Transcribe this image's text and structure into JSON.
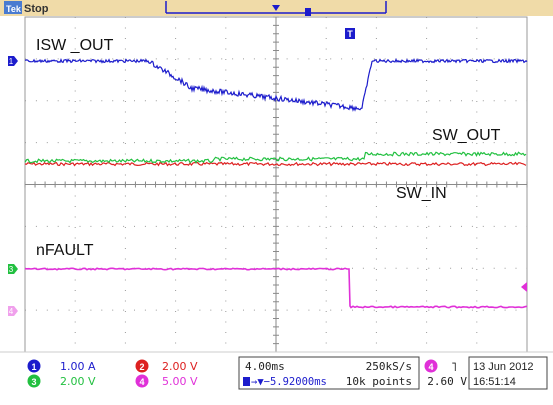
{
  "status": {
    "brand": "Tek",
    "state": "Stop"
  },
  "trigger_marker": "T",
  "channel_markers": [
    "1",
    "2",
    "3",
    "4"
  ],
  "waveform_labels": {
    "isw_out": "ISW _OUT",
    "sw_out": "SW_OUT",
    "sw_in": "SW_IN",
    "nfault": "nFAULT"
  },
  "channels": [
    {
      "id": "1",
      "scale": "1.00 A",
      "color": "#1c1ccc"
    },
    {
      "id": "2",
      "scale": "2.00 V",
      "color": "#dd2020"
    },
    {
      "id": "3",
      "scale": "2.00 V",
      "color": "#22c040"
    },
    {
      "id": "4",
      "scale": "5.00 V",
      "color": "#e030d8"
    }
  ],
  "timebase": {
    "scale": "4.00ms",
    "sample_rate": "250kS/s",
    "position": "→▼−5.92000ms",
    "record_length": "10k points"
  },
  "trigger": {
    "channel": "4",
    "slope": "˥",
    "level": "2.60 V"
  },
  "datetime": {
    "date": "13 Jun 2012",
    "time": "16:51:14"
  },
  "colors": {
    "screen_bg": "#ffffff",
    "grid": "#9a9a9a",
    "status_bar": "#f0dba8",
    "ch1": "#1c1ccc",
    "ch2": "#dd2020",
    "ch3": "#22c040",
    "ch4": "#e030d8"
  }
}
